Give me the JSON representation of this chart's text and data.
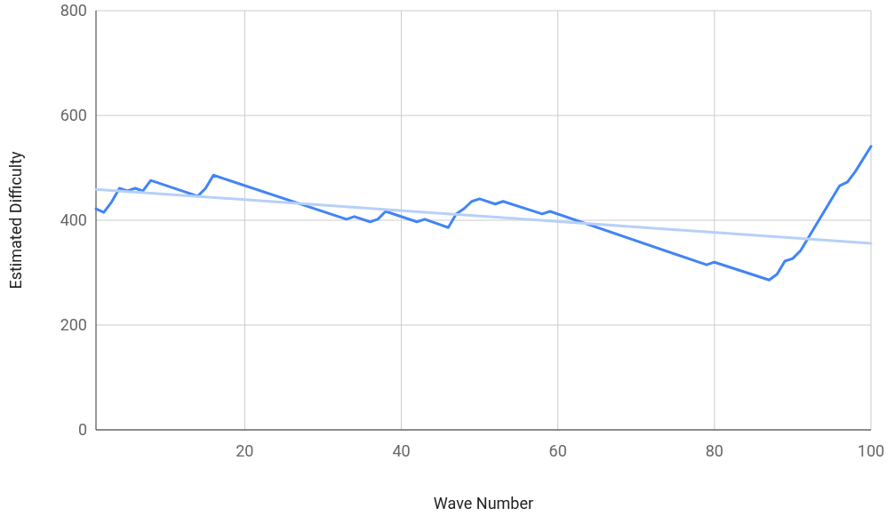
{
  "chart_data": {
    "type": "line",
    "xlabel": "Wave Number",
    "ylabel": "Estimated Difficulty",
    "xlim": [
      1,
      100
    ],
    "xticks": [
      20,
      40,
      60,
      80,
      100
    ],
    "ylim": [
      0,
      800
    ],
    "yticks": [
      0,
      200,
      400,
      600,
      800
    ],
    "grid": true,
    "marker": "none",
    "line_style": "solid",
    "series": [
      {
        "color": "#4285f4",
        "x": [
          1,
          2,
          3,
          4,
          5,
          6,
          7,
          8,
          14,
          15,
          16,
          33,
          34,
          36,
          37,
          38,
          42,
          43,
          46,
          47,
          48,
          49,
          50,
          52,
          53,
          58,
          59,
          79,
          80,
          87,
          88,
          89,
          90,
          91,
          96,
          97,
          98,
          100
        ],
        "values": [
          422,
          415,
          435,
          461,
          456,
          461,
          456,
          476,
          446,
          461,
          486,
          402,
          407,
          397,
          402,
          417,
          397,
          402,
          386,
          412,
          422,
          436,
          441,
          431,
          436,
          412,
          417,
          315,
          320,
          286,
          297,
          322,
          327,
          342,
          466,
          473,
          493,
          541
        ]
      },
      {
        "color": "#b7cffa",
        "x": [
          1,
          100
        ],
        "values": [
          459,
          356
        ]
      }
    ]
  }
}
